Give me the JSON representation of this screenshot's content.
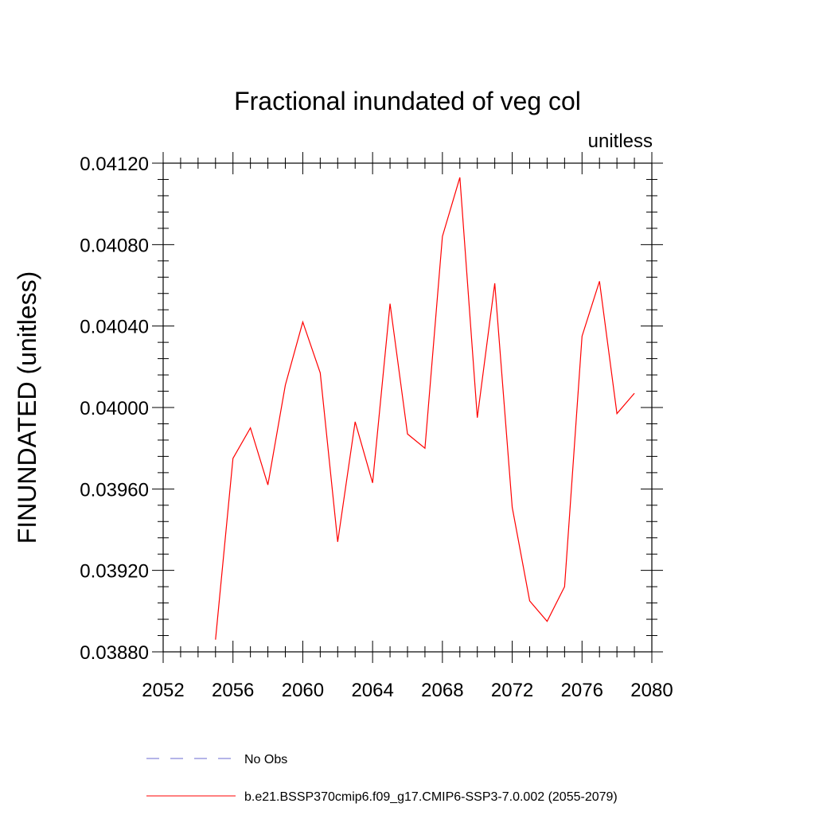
{
  "chart_data": {
    "type": "line",
    "title": "Fractional inundated of veg col",
    "units_label": "unitless",
    "ylabel": "FINUNDATED  (unitless)",
    "xlabel": "",
    "xlim": [
      2052,
      2080
    ],
    "ylim": [
      0.0388,
      0.0412
    ],
    "x_ticks": [
      2052,
      2056,
      2060,
      2064,
      2068,
      2072,
      2076,
      2080
    ],
    "x_tick_labels": [
      "2052",
      "2056",
      "2060",
      "2064",
      "2068",
      "2072",
      "2076",
      "2080"
    ],
    "y_ticks": [
      0.0388,
      0.0392,
      0.0396,
      0.04,
      0.0404,
      0.0408,
      0.0412
    ],
    "y_tick_labels": [
      "0.03880",
      "0.03920",
      "0.03960",
      "0.04000",
      "0.04040",
      "0.04080",
      "0.04120"
    ],
    "grid": false,
    "series": [
      {
        "name": "b.e21.BSSP370cmip6.f09_g17.CMIP6-SSP3-7.0.002 (2055-2079)",
        "color": "#ff0000",
        "style": "solid",
        "x": [
          2055,
          2056,
          2057,
          2058,
          2059,
          2060,
          2061,
          2062,
          2063,
          2064,
          2065,
          2066,
          2067,
          2068,
          2069,
          2070,
          2071,
          2072,
          2073,
          2074,
          2075,
          2076,
          2077,
          2078,
          2079
        ],
        "y": [
          0.03886,
          0.03975,
          0.0399,
          0.03962,
          0.04011,
          0.04042,
          0.04017,
          0.03934,
          0.03993,
          0.03963,
          0.04051,
          0.03987,
          0.0398,
          0.04084,
          0.04113,
          0.03995,
          0.04061,
          0.03951,
          0.03905,
          0.03895,
          0.03912,
          0.04035,
          0.04062,
          0.03997,
          0.04007
        ]
      }
    ],
    "legend": [
      {
        "label": "No Obs",
        "color": "#6a6ad0",
        "style": "dashed"
      },
      {
        "label": "b.e21.BSSP370cmip6.f09_g17.CMIP6-SSP3-7.0.002 (2055-2079)",
        "color": "#ff0000",
        "style": "solid"
      }
    ],
    "legend_position": "bottom"
  }
}
